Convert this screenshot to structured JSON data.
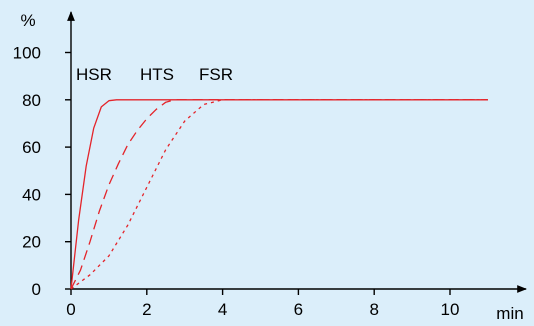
{
  "chart_data": {
    "type": "line",
    "xlabel": "min",
    "ylabel": "%",
    "xlim": [
      0,
      12
    ],
    "ylim": [
      0,
      100
    ],
    "x_ticks": [
      0,
      2,
      4,
      6,
      8,
      10
    ],
    "y_ticks": [
      0,
      20,
      40,
      60,
      80,
      100
    ],
    "grid": false,
    "line_color": "#e4242a",
    "series": [
      {
        "name": "HSR",
        "style": "solid",
        "x": [
          0,
          0.2,
          0.4,
          0.6,
          0.8,
          1.0,
          1.2,
          11
        ],
        "y": [
          0,
          29,
          52,
          68,
          77,
          79.6,
          80,
          80
        ]
      },
      {
        "name": "HTS",
        "style": "dashed",
        "x": [
          0,
          0.25,
          0.5,
          0.75,
          1.0,
          1.25,
          1.5,
          1.75,
          2.0,
          2.25,
          2.5,
          2.75,
          11
        ],
        "y": [
          0,
          8,
          20,
          33,
          44,
          53,
          61,
          67,
          72,
          76,
          79,
          80,
          80
        ]
      },
      {
        "name": "FSR",
        "style": "dotted",
        "x": [
          0,
          0.5,
          1.0,
          1.5,
          2.0,
          2.5,
          3.0,
          3.5,
          4.0,
          11
        ],
        "y": [
          0,
          6,
          14,
          27,
          43,
          59,
          71,
          78,
          80,
          80
        ]
      }
    ]
  }
}
